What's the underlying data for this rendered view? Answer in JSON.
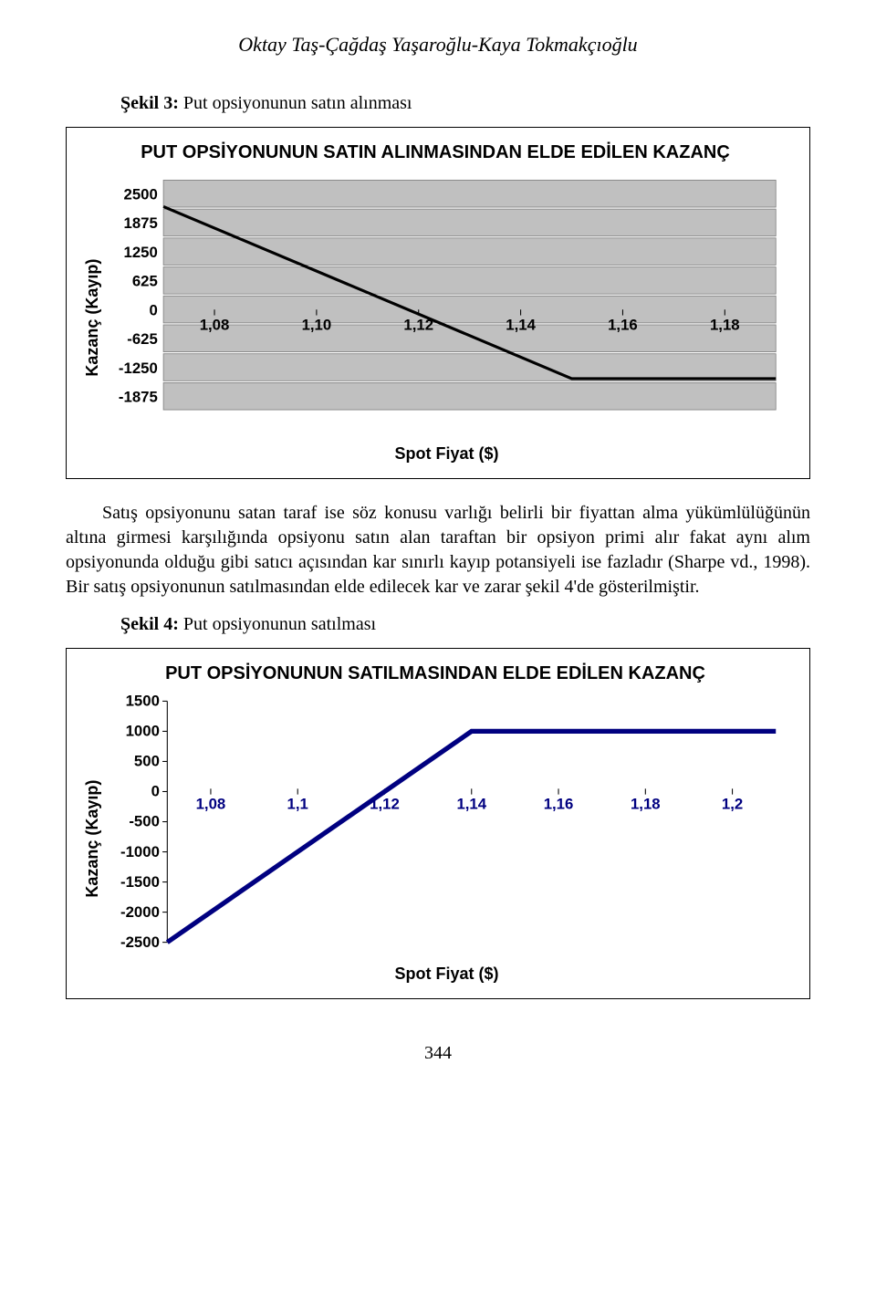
{
  "authors": "Oktay Taş-Çağdaş Yaşaroğlu-Kaya Tokmakçıoğlu",
  "figure3": {
    "caption_bold": "Şekil 3:",
    "caption_rest": " Put opsiyonunun satın alınması",
    "chart": {
      "type": "line",
      "title": "PUT OPSİYONUNUN SATIN ALINMASINDAN ELDE EDİLEN KAZANÇ",
      "ylabel": "Kazanç (Kayıp)",
      "xlabel": "Spot Fiyat ($)",
      "y_ticks": [
        2500,
        1875,
        1250,
        625,
        0,
        -625,
        -1250,
        -1875
      ],
      "x_ticks": [
        "1,08",
        "1,10",
        "1,12",
        "1,14",
        "1,16",
        "1,18"
      ],
      "ylim": [
        -1875,
        2500
      ],
      "series_values": [
        {
          "x": 0,
          "y": 2000
        },
        {
          "x": 4,
          "y": -1250
        },
        {
          "x": 6,
          "y": -1250
        }
      ],
      "line_color": "#000000",
      "line_width": 3,
      "bar_bg": "#c0c0c0",
      "bar_border": "#808080",
      "plot_bg": "#ffffff",
      "tick_fontsize": 16,
      "tick_fontweight": "bold",
      "tick_font": "Arial"
    }
  },
  "body_para": "Satış opsiyonunu satan taraf ise söz konusu varlığı belirli bir fiyattan alma yükümlülüğünün altına girmesi karşılığında opsiyonu satın alan taraftan bir opsiyon primi alır fakat aynı alım opsiyonunda olduğu gibi satıcı açısından kar sınırlı kayıp potansiyeli ise fazladır (Sharpe vd., 1998). Bir satış opsiyonunun satılmasından elde edilecek kar ve zarar şekil 4'de gösterilmiştir.",
  "figure4": {
    "caption_bold": "Şekil 4:",
    "caption_rest": " Put opsiyonunun satılması",
    "chart": {
      "type": "line",
      "title": "PUT OPSİYONUNUN SATILMASINDAN ELDE EDİLEN KAZANÇ",
      "ylabel": "Kazanç (Kayıp)",
      "xlabel": "Spot Fiyat ($)",
      "y_ticks": [
        1500,
        1000,
        500,
        0,
        -500,
        -1000,
        -1500,
        -2000,
        -2500
      ],
      "x_ticks": [
        "1,08",
        "1,1",
        "1,12",
        "1,14",
        "1,16",
        "1,18",
        "1,2"
      ],
      "ylim": [
        -2500,
        1500
      ],
      "series_values": [
        {
          "x": 0,
          "y": -2500
        },
        {
          "x": 3.5,
          "y": 1000
        },
        {
          "x": 7,
          "y": 1000
        }
      ],
      "line_color": "#000080",
      "line_width": 5,
      "bg": "#ffffff",
      "tick_fontsize": 16,
      "tick_fontweight": "bold",
      "tick_font": "Arial",
      "tick_color": "#000080"
    }
  },
  "page_number": "344"
}
